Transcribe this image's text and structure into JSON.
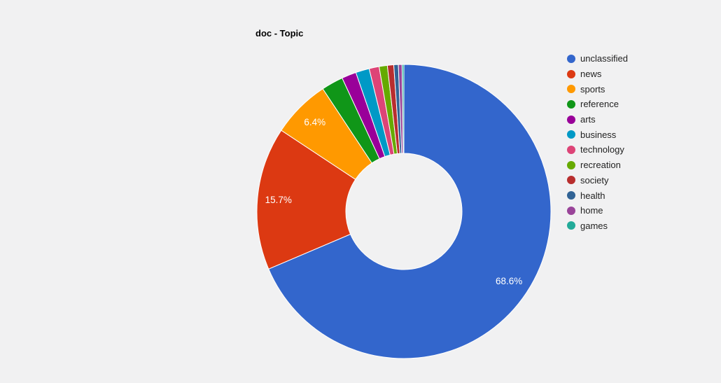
{
  "page": {
    "background_color": "#f1f1f2"
  },
  "chart_data": {
    "type": "pie",
    "subtype": "donut",
    "title": "doc - Topic",
    "legend_position": "right",
    "grid": false,
    "hole_color": "#f1f1f2",
    "slice_border_color": "#ffffff",
    "labels": [
      "unclassified",
      "news",
      "sports",
      "reference",
      "arts",
      "business",
      "technology",
      "recreation",
      "society",
      "health",
      "home",
      "games"
    ],
    "values": [
      68.6,
      15.7,
      6.4,
      2.4,
      1.6,
      1.5,
      1.1,
      0.9,
      0.7,
      0.5,
      0.4,
      0.2
    ],
    "slice_labels": [
      "68.6%",
      "15.7%",
      "6.4%",
      "",
      "",
      "",
      "",
      "",
      "",
      "",
      "",
      ""
    ],
    "colors": [
      "#3366cc",
      "#dc3912",
      "#ff9900",
      "#109618",
      "#990099",
      "#0099c6",
      "#dd4477",
      "#66aa00",
      "#b82e2e",
      "#316395",
      "#994499",
      "#22aa99"
    ],
    "label_text_color": "#ffffff",
    "title_color": "#000000",
    "legend_text_color": "#222222"
  }
}
